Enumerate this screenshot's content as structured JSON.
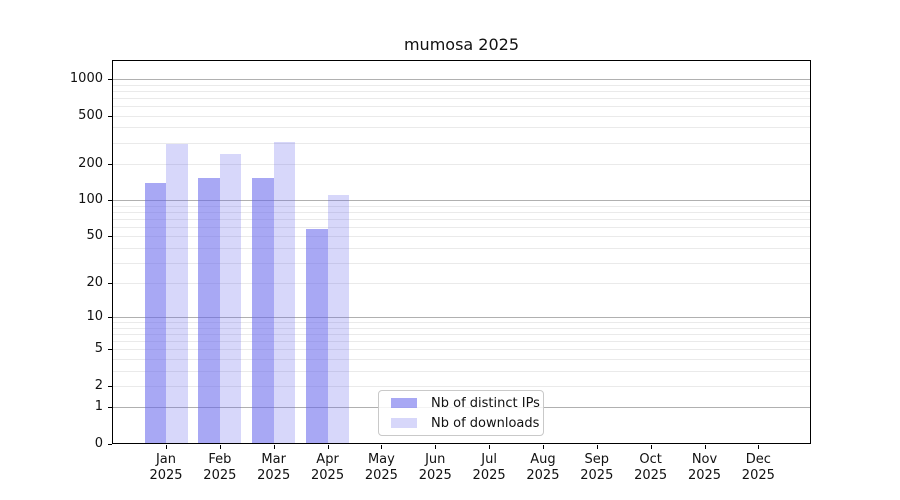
{
  "title": "mumosa 2025",
  "legend": {
    "items": [
      {
        "key": "ips",
        "label": "Nb of distinct IPs"
      },
      {
        "key": "downloads",
        "label": "Nb of downloads"
      }
    ]
  },
  "colors": {
    "bar_ips": "#6464eb8f",
    "bar_downloads": "#6464eb42",
    "grid_major": "#b0b0b0",
    "grid_minor": "#eaeaea",
    "axis": "#000000",
    "text": "#111111"
  },
  "chart_data": {
    "type": "bar",
    "title": "mumosa 2025",
    "categories": [
      "Jan",
      "Feb",
      "Mar",
      "Apr",
      "May",
      "Jun",
      "Jul",
      "Aug",
      "Sep",
      "Oct",
      "Nov",
      "Dec"
    ],
    "x_year_label": "2025",
    "series": [
      {
        "name": "Nb of distinct IPs",
        "values": [
          140,
          152,
          152,
          58,
          null,
          null,
          null,
          null,
          null,
          null,
          null,
          null
        ]
      },
      {
        "name": "Nb of downloads",
        "values": [
          290,
          243,
          304,
          110,
          null,
          null,
          null,
          null,
          null,
          null,
          null,
          null
        ]
      }
    ],
    "y_scale": "log1p",
    "y_ticks": [
      0,
      1,
      2,
      5,
      10,
      20,
      50,
      100,
      200,
      500,
      1000
    ],
    "y_major_gridlines": [
      1,
      10,
      100,
      1000
    ],
    "ylim": [
      0,
      1440
    ],
    "grid": "both",
    "legend_position": "lower center"
  }
}
